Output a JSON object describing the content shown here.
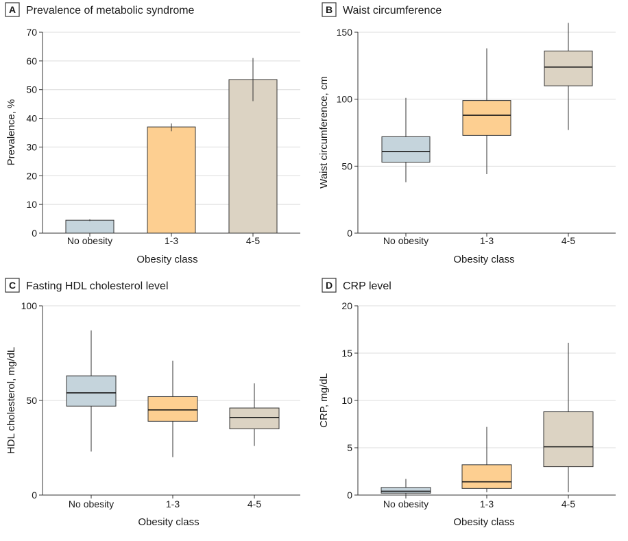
{
  "colors": {
    "no_obesity": "#c5d4dc",
    "class_1_3": "#fdcf91",
    "class_4_5": "#dcd3c3",
    "edge": "#333333",
    "grid": "#dcdcdc"
  },
  "chart_data": [
    {
      "id": "A",
      "type": "bar",
      "panel_letter": "A",
      "title": "Prevalence of metabolic syndrome",
      "xlabel": "Obesity class",
      "ylabel": "Prevalence, %",
      "ylim": [
        0,
        70
      ],
      "yticks": [
        0,
        10,
        20,
        30,
        40,
        50,
        60,
        70
      ],
      "grid": true,
      "categories": [
        "No obesity",
        "1-3",
        "4-5"
      ],
      "values": [
        4.5,
        37,
        53.5
      ],
      "error_low": [
        4.2,
        35.5,
        46
      ],
      "error_high": [
        4.8,
        38.2,
        61
      ]
    },
    {
      "id": "B",
      "type": "box",
      "panel_letter": "B",
      "title": "Waist circumference",
      "xlabel": "Obesity class",
      "ylabel": "Waist circumference, cm",
      "ylim": [
        0,
        150
      ],
      "yticks": [
        0,
        50,
        100,
        150
      ],
      "grid": true,
      "categories": [
        "No obesity",
        "1-3",
        "4-5"
      ],
      "boxes": [
        {
          "whisker_low": 38,
          "q1": 53,
          "median": 61,
          "q3": 72,
          "whisker_high": 101
        },
        {
          "whisker_low": 44,
          "q1": 73,
          "median": 88,
          "q3": 99,
          "whisker_high": 138
        },
        {
          "whisker_low": 77,
          "q1": 110,
          "median": 124,
          "q3": 136,
          "whisker_high": 157
        }
      ]
    },
    {
      "id": "C",
      "type": "box",
      "panel_letter": "C",
      "title": "Fasting HDL cholesterol level",
      "xlabel": "Obesity class",
      "ylabel": "HDL cholesterol, mg/dL",
      "ylim": [
        0,
        100
      ],
      "yticks": [
        0,
        50,
        100
      ],
      "grid": true,
      "categories": [
        "No obesity",
        "1-3",
        "4-5"
      ],
      "boxes": [
        {
          "whisker_low": 23,
          "q1": 47,
          "median": 54,
          "q3": 63,
          "whisker_high": 87
        },
        {
          "whisker_low": 20,
          "q1": 39,
          "median": 45,
          "q3": 52,
          "whisker_high": 71
        },
        {
          "whisker_low": 26,
          "q1": 35,
          "median": 41,
          "q3": 46,
          "whisker_high": 59
        }
      ]
    },
    {
      "id": "D",
      "type": "box",
      "panel_letter": "D",
      "title": "CRP level",
      "xlabel": "Obesity class",
      "ylabel": "CRP, mg/dL",
      "ylim": [
        0,
        20
      ],
      "yticks": [
        0,
        5,
        10,
        15,
        20
      ],
      "grid": true,
      "categories": [
        "No obesity",
        "1-3",
        "4-5"
      ],
      "boxes": [
        {
          "whisker_low": 0.05,
          "q1": 0.2,
          "median": 0.4,
          "q3": 0.8,
          "whisker_high": 1.7
        },
        {
          "whisker_low": 0.3,
          "q1": 0.7,
          "median": 1.4,
          "q3": 3.2,
          "whisker_high": 7.2
        },
        {
          "whisker_low": 0.3,
          "q1": 3.0,
          "median": 5.1,
          "q3": 8.8,
          "whisker_high": 16.1
        }
      ]
    }
  ]
}
